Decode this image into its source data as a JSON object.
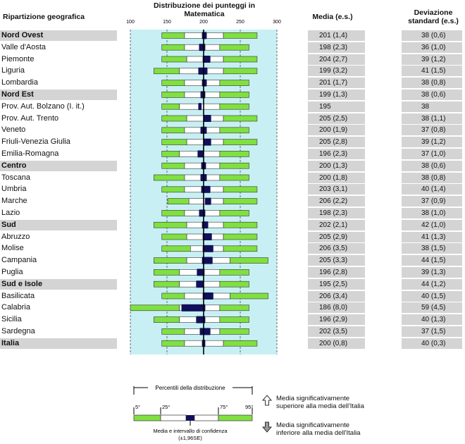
{
  "headers": {
    "region": "Ripartizione geografica",
    "distribution": "Distribuzione dei punteggi in Matematica",
    "mean": "Media (e.s.)",
    "std": "Deviazione standard (e.s.)"
  },
  "chart_data": {
    "type": "box-percentile",
    "axis": {
      "min": 100,
      "max": 300,
      "ticks": [
        "100",
        "150",
        "200",
        "250",
        "300"
      ]
    },
    "reference_line": 200,
    "rows": [
      {
        "name": "Nord Ovest",
        "aggregate": true,
        "p5": 143,
        "p25": 174,
        "ci_low": 198,
        "ci_high": 204,
        "p75": 227,
        "p95": 273,
        "mean": "201 (1,4)",
        "sd": "38 (0,6)"
      },
      {
        "name": "Valle d'Aosta",
        "aggregate": false,
        "p5": 143,
        "p25": 174,
        "ci_low": 194,
        "ci_high": 202,
        "p75": 222,
        "p95": 262,
        "mean": "198 (2,3)",
        "sd": "36 (1,0)"
      },
      {
        "name": "Piemonte",
        "aggregate": false,
        "p5": 143,
        "p25": 177,
        "ci_low": 199,
        "ci_high": 209,
        "p75": 227,
        "p95": 273,
        "mean": "204 (2,7)",
        "sd": "39 (1,2)"
      },
      {
        "name": "Liguria",
        "aggregate": false,
        "p5": 132,
        "p25": 167,
        "ci_low": 193,
        "ci_high": 205,
        "p75": 227,
        "p95": 273,
        "mean": "199 (3,2)",
        "sd": "41 (1,5)"
      },
      {
        "name": "Lombardia",
        "aggregate": false,
        "p5": 143,
        "p25": 174,
        "ci_low": 198,
        "ci_high": 204,
        "p75": 222,
        "p95": 262,
        "mean": "201 (1,7)",
        "sd": "38 (0,8)"
      },
      {
        "name": "Nord Est",
        "aggregate": true,
        "p5": 143,
        "p25": 174,
        "ci_low": 196,
        "ci_high": 202,
        "p75": 222,
        "p95": 262,
        "mean": "199 (1,3)",
        "sd": "38 (0,6)"
      },
      {
        "name": "Prov. Aut. Bolzano (I. it.)",
        "aggregate": false,
        "p5": 143,
        "p25": 167,
        "ci_low": 193,
        "ci_high": 197,
        "p75": 222,
        "p95": 262,
        "mean": "195",
        "sd": "38"
      },
      {
        "name": "Prov. Aut. Trento",
        "aggregate": false,
        "p5": 143,
        "p25": 177,
        "ci_low": 200,
        "ci_high": 210,
        "p75": 227,
        "p95": 273,
        "mean": "205 (2,5)",
        "sd": "38 (1,1)"
      },
      {
        "name": "Veneto",
        "aggregate": false,
        "p5": 143,
        "p25": 174,
        "ci_low": 196,
        "ci_high": 204,
        "p75": 222,
        "p95": 262,
        "mean": "200 (1,9)",
        "sd": "37 (0,8)"
      },
      {
        "name": "Friuli-Venezia Giulia",
        "aggregate": false,
        "p5": 143,
        "p25": 177,
        "ci_low": 200,
        "ci_high": 210,
        "p75": 227,
        "p95": 273,
        "mean": "205 (2,8)",
        "sd": "39 (1,2)"
      },
      {
        "name": "Emilia-Romagna",
        "aggregate": false,
        "p5": 143,
        "p25": 167,
        "ci_low": 192,
        "ci_high": 200,
        "p75": 222,
        "p95": 262,
        "mean": "196 (2,3)",
        "sd": "37 (1,0)"
      },
      {
        "name": "Centro",
        "aggregate": true,
        "p5": 143,
        "p25": 174,
        "ci_low": 197,
        "ci_high": 203,
        "p75": 222,
        "p95": 262,
        "mean": "200 (1,3)",
        "sd": "38 (0,6)"
      },
      {
        "name": "Toscana",
        "aggregate": false,
        "p5": 132,
        "p25": 174,
        "ci_low": 196,
        "ci_high": 204,
        "p75": 222,
        "p95": 262,
        "mean": "200 (1,8)",
        "sd": "38 (0,8)"
      },
      {
        "name": "Umbria",
        "aggregate": false,
        "p5": 143,
        "p25": 174,
        "ci_low": 197,
        "ci_high": 209,
        "p75": 227,
        "p95": 273,
        "mean": "203 (3,1)",
        "sd": "40 (1,4)"
      },
      {
        "name": "Marche",
        "aggregate": false,
        "p5": 151,
        "p25": 180,
        "ci_low": 202,
        "ci_high": 210,
        "p75": 227,
        "p95": 273,
        "mean": "206 (2,2)",
        "sd": "37 (0,9)"
      },
      {
        "name": "Lazio",
        "aggregate": false,
        "p5": 143,
        "p25": 174,
        "ci_low": 194,
        "ci_high": 202,
        "p75": 222,
        "p95": 262,
        "mean": "198 (2,3)",
        "sd": "38 (1,0)"
      },
      {
        "name": "Sud",
        "aggregate": true,
        "p5": 132,
        "p25": 177,
        "ci_low": 198,
        "ci_high": 206,
        "p75": 227,
        "p95": 273,
        "mean": "202 (2,1)",
        "sd": "42 (1,0)"
      },
      {
        "name": "Abruzzo",
        "aggregate": false,
        "p5": 143,
        "p25": 177,
        "ci_low": 199,
        "ci_high": 211,
        "p75": 227,
        "p95": 273,
        "mean": "205 (2,9)",
        "sd": "41 (1,3)"
      },
      {
        "name": "Molise",
        "aggregate": false,
        "p5": 143,
        "p25": 182,
        "ci_low": 199,
        "ci_high": 213,
        "p75": 227,
        "p95": 273,
        "mean": "206 (3,5)",
        "sd": "38 (1,5)"
      },
      {
        "name": "Campania",
        "aggregate": false,
        "p5": 132,
        "p25": 177,
        "ci_low": 198,
        "ci_high": 212,
        "p75": 236,
        "p95": 288,
        "mean": "205 (3,3)",
        "sd": "44 (1,5)"
      },
      {
        "name": "Puglia",
        "aggregate": false,
        "p5": 132,
        "p25": 167,
        "ci_low": 191,
        "ci_high": 201,
        "p75": 222,
        "p95": 262,
        "mean": "196 (2,8)",
        "sd": "39 (1,3)"
      },
      {
        "name": "Sud e Isole",
        "aggregate": true,
        "p5": 132,
        "p25": 167,
        "ci_low": 190,
        "ci_high": 200,
        "p75": 222,
        "p95": 262,
        "mean": "195 (2,5)",
        "sd": "44 (1,2)"
      },
      {
        "name": "Basilicata",
        "aggregate": false,
        "p5": 143,
        "p25": 174,
        "ci_low": 199,
        "ci_high": 213,
        "p75": 236,
        "p95": 288,
        "mean": "206 (3,4)",
        "sd": "40 (1,5)"
      },
      {
        "name": "Calabria",
        "aggregate": false,
        "p5": 100,
        "p25": 167,
        "ci_low": 170,
        "ci_high": 202,
        "p75": 222,
        "p95": 262,
        "mean": "186 (8,0)",
        "sd": "59 (4,5)"
      },
      {
        "name": "Sicilia",
        "aggregate": false,
        "p5": 132,
        "p25": 167,
        "ci_low": 190,
        "ci_high": 202,
        "p75": 222,
        "p95": 262,
        "mean": "196 (2,9)",
        "sd": "40 (1,3)"
      },
      {
        "name": "Sardegna",
        "aggregate": false,
        "p5": 143,
        "p25": 174,
        "ci_low": 195,
        "ci_high": 209,
        "p75": 222,
        "p95": 262,
        "mean": "202 (3,5)",
        "sd": "37 (1,5)"
      },
      {
        "name": "Italia",
        "aggregate": true,
        "p5": 143,
        "p25": 174,
        "ci_low": 198,
        "ci_high": 202,
        "p75": 227,
        "p95": 273,
        "mean": "200 (0,8)",
        "sd": "40 (0,3)"
      }
    ]
  },
  "legend": {
    "percentiles_title": "Percentili della distribuzione",
    "p5": "5°",
    "p25": "25°",
    "p75": "75°",
    "p95": "95°",
    "ci_label_1": "Media e intervallo di confidenza",
    "ci_label_2": "(±1,96SE)",
    "up_note_1": "Media significativamente",
    "up_note_2": "superiore alla media dell'Italia",
    "down_note_1": "Media significativamente",
    "down_note_2": "inferiore alla media dell'Italia"
  },
  "colors": {
    "background_panel": "#c8f0f4",
    "percentile_bar": "#80e040",
    "ci_box": "#10105a",
    "band": "#d4d4d4"
  }
}
